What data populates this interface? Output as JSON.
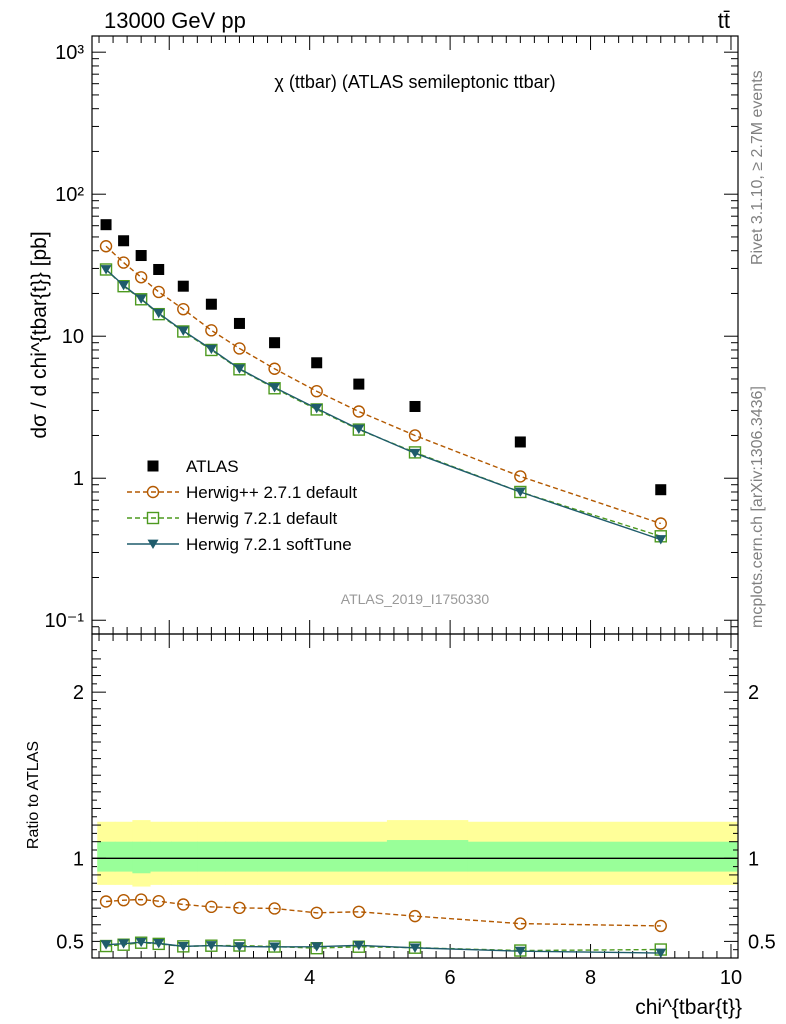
{
  "header": {
    "process": "13000 GeV pp",
    "final_state": "tt̄",
    "analysis_title": "χ (ttbar) (ATLAS semileptonic ttbar)",
    "analysis_id": "ATLAS_2019_I1750330",
    "rivet_label": "Rivet 3.1.10, ≥ 2.7M events",
    "mcplots_label": "mcplots.cern.ch [arXiv:1306.3436]"
  },
  "chart_data": [
    {
      "type": "scatter",
      "panel": "main",
      "ylabel": "dσ / d chi^{tbar{t}} [pb]",
      "yscale": "log",
      "ylim": [
        0.08,
        1300
      ],
      "xlim": [
        0.9,
        10.1
      ],
      "ytick_labels": [
        "10⁻¹",
        "1",
        "10",
        "10²",
        "10³"
      ],
      "x": [
        1.1,
        1.35,
        1.6,
        1.85,
        2.2,
        2.6,
        3.0,
        3.5,
        4.1,
        4.7,
        5.5,
        7.0,
        9.0
      ],
      "series": [
        {
          "name": "ATLAS",
          "marker": "filled-square",
          "color": "#000000",
          "values": [
            61,
            47,
            37,
            29.5,
            22.5,
            16.8,
            12.3,
            9.0,
            6.5,
            4.6,
            3.2,
            1.8,
            0.83
          ]
        },
        {
          "name": "Herwig++ 2.7.1 default",
          "marker": "open-circle",
          "line": "dashed",
          "color": "#b35900",
          "values": [
            43,
            33,
            26,
            20.5,
            15.5,
            11.0,
            8.2,
            5.9,
            4.1,
            2.95,
            2.0,
            1.03,
            0.48
          ]
        },
        {
          "name": "Herwig 7.2.1 default",
          "marker": "open-square",
          "line": "dashed",
          "color": "#4d9a1f",
          "values": [
            29.5,
            22.5,
            18.2,
            14.3,
            10.8,
            8.0,
            5.85,
            4.3,
            3.05,
            2.2,
            1.52,
            0.8,
            0.39
          ]
        },
        {
          "name": "Herwig 7.2.1 softTune",
          "marker": "filled-triangle-down",
          "line": "solid",
          "color": "#1f5c6b",
          "values": [
            29.5,
            22.8,
            18.3,
            14.5,
            10.9,
            8.1,
            5.9,
            4.35,
            3.1,
            2.22,
            1.5,
            0.8,
            0.37
          ]
        }
      ]
    },
    {
      "type": "scatter",
      "panel": "ratio",
      "ylabel": "Ratio to ATLAS",
      "xlabel": "chi^{tbar{t}}",
      "ylim": [
        0.4,
        2.35
      ],
      "xlim": [
        0.9,
        10.1
      ],
      "ytick_labels": [
        "0.5",
        "1",
        "2"
      ],
      "xtick_labels": [
        "2",
        "4",
        "6",
        "8",
        "10"
      ],
      "x": [
        1.1,
        1.35,
        1.6,
        1.85,
        2.2,
        2.6,
        3.0,
        3.5,
        4.1,
        4.7,
        5.5,
        7.0,
        9.0
      ],
      "bands": {
        "yellow": [
          [
            0.84,
            1.22
          ],
          [
            0.84,
            1.22
          ],
          [
            0.83,
            1.23
          ],
          [
            0.84,
            1.22
          ],
          [
            0.84,
            1.22
          ],
          [
            0.84,
            1.22
          ],
          [
            0.84,
            1.22
          ],
          [
            0.84,
            1.22
          ],
          [
            0.84,
            1.22
          ],
          [
            0.84,
            1.22
          ],
          [
            0.84,
            1.23
          ],
          [
            0.84,
            1.22
          ],
          [
            0.84,
            1.22
          ]
        ],
        "green": [
          [
            0.92,
            1.1
          ],
          [
            0.92,
            1.1
          ],
          [
            0.91,
            1.1
          ],
          [
            0.92,
            1.1
          ],
          [
            0.92,
            1.1
          ],
          [
            0.92,
            1.1
          ],
          [
            0.92,
            1.1
          ],
          [
            0.92,
            1.1
          ],
          [
            0.92,
            1.1
          ],
          [
            0.92,
            1.1
          ],
          [
            0.92,
            1.11
          ],
          [
            0.92,
            1.1
          ],
          [
            0.92,
            1.1
          ]
        ]
      },
      "series": [
        {
          "name": "Herwig++ 2.7.1 default",
          "color": "#b35900",
          "values": [
            0.74,
            0.748,
            0.752,
            0.742,
            0.722,
            0.708,
            0.702,
            0.698,
            0.672,
            0.678,
            0.652,
            0.607,
            0.593
          ]
        },
        {
          "name": "Herwig 7.2.1 default",
          "color": "#4d9a1f",
          "values": [
            0.472,
            0.48,
            0.492,
            0.485,
            0.47,
            0.474,
            0.475,
            0.469,
            0.459,
            0.468,
            0.462,
            0.445,
            0.451
          ]
        },
        {
          "name": "Herwig 7.2.1 softTune",
          "color": "#1f5c6b",
          "values": [
            0.48,
            0.486,
            0.495,
            0.488,
            0.47,
            0.475,
            0.469,
            0.467,
            0.468,
            0.476,
            0.461,
            0.441,
            0.43
          ]
        }
      ]
    }
  ]
}
